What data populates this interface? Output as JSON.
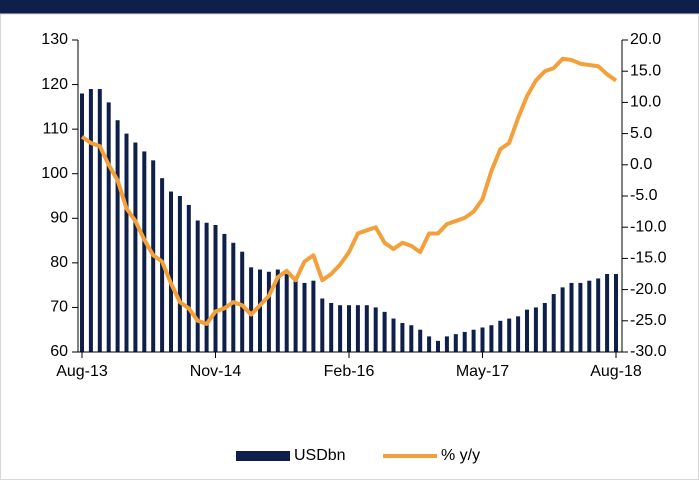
{
  "chart_data": {
    "type": "bar-line",
    "categories": [
      "Aug-13",
      null,
      null,
      null,
      null,
      null,
      null,
      null,
      null,
      null,
      null,
      null,
      null,
      null,
      null,
      "Nov-14",
      null,
      null,
      null,
      null,
      null,
      null,
      null,
      null,
      null,
      null,
      null,
      null,
      null,
      null,
      "Feb-16",
      null,
      null,
      null,
      null,
      null,
      null,
      null,
      null,
      null,
      null,
      null,
      null,
      null,
      null,
      "May-17",
      null,
      null,
      null,
      null,
      null,
      null,
      null,
      null,
      null,
      null,
      null,
      null,
      null,
      null,
      "Aug-18"
    ],
    "series": [
      {
        "name": "USDbn",
        "color": "#0f1f4b",
        "kind": "bar",
        "axis": "y",
        "values": [
          118,
          119,
          119,
          116,
          112,
          109,
          107,
          105,
          103,
          99,
          96,
          95,
          93,
          89.5,
          89,
          88.5,
          86.5,
          84.5,
          82.5,
          79,
          78.5,
          78,
          78.5,
          77.5,
          76,
          75.5,
          76,
          72,
          71,
          70.5,
          70.5,
          70.5,
          70.5,
          70,
          69,
          67.5,
          66.5,
          66,
          65,
          63.5,
          62.5,
          63.5,
          64,
          64.5,
          65,
          65.5,
          66,
          67,
          67.5,
          68,
          69.5,
          70,
          71,
          73,
          74.5,
          75.5,
          75.5,
          76,
          76.5,
          77.5,
          77.5
        ]
      },
      {
        "name": "% y/y",
        "color": "#f4a03a",
        "kind": "line",
        "axis": "y2",
        "values": [
          4.5,
          3.5,
          3,
          0,
          -2.5,
          -7,
          -9,
          -12,
          -14.5,
          -15.5,
          -19,
          -22,
          -23,
          -25,
          -25.5,
          -23.5,
          -23,
          -22,
          -22.5,
          -24,
          -22.5,
          -21,
          -18,
          -17,
          -18.5,
          -15.5,
          -14.5,
          -18.5,
          -17.5,
          -16,
          -14,
          -11,
          -10.5,
          -10,
          -12.5,
          -13.5,
          -12.5,
          -13,
          -14,
          -11,
          -11,
          -9.5,
          -9,
          -8.5,
          -7.5,
          -5.5,
          -1,
          2.5,
          3.5,
          7.5,
          11,
          13.5,
          15,
          15.5,
          17,
          16.8,
          16.2,
          16,
          15.8,
          14.5,
          13.5
        ]
      }
    ],
    "ylim": [
      60,
      130
    ],
    "yticks": [
      60,
      70,
      80,
      90,
      100,
      110,
      120,
      130
    ],
    "y2lim": [
      -30,
      20
    ],
    "y2ticks": [
      {
        "value": 20,
        "label": "20.0"
      },
      {
        "value": 15,
        "label": "15.0"
      },
      {
        "value": 10,
        "label": "10.0"
      },
      {
        "value": 5,
        "label": "5.0"
      },
      {
        "value": 0,
        "label": "0.0"
      },
      {
        "value": -5,
        "label": "-5.0"
      },
      {
        "value": -10,
        "label": "-10.0"
      },
      {
        "value": -15,
        "label": "-15.0"
      },
      {
        "value": -20,
        "label": "-20.0"
      },
      {
        "value": -25,
        "label": "-25.0"
      },
      {
        "value": -30,
        "label": "-30.0"
      }
    ],
    "legend": "bottom"
  }
}
